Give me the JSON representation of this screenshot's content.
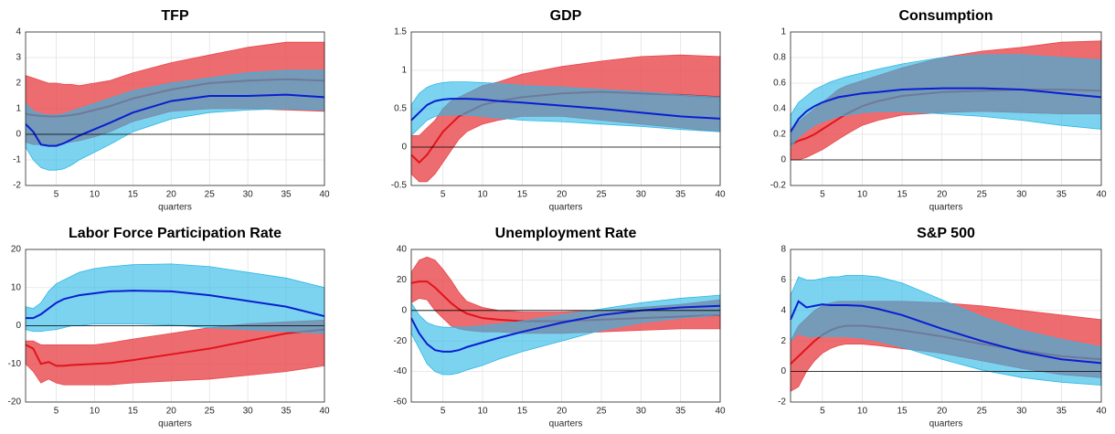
{
  "chart_data": [
    {
      "type": "line",
      "title": "TFP",
      "xlabel": "quarters",
      "x": [
        1,
        2,
        3,
        4,
        5,
        6,
        7,
        8,
        10,
        12,
        15,
        20,
        25,
        30,
        35,
        40
      ],
      "xlim": [
        1,
        40
      ],
      "xticks": [
        5,
        10,
        15,
        20,
        25,
        30,
        35,
        40
      ],
      "ylim": [
        -2,
        4
      ],
      "yticks": [
        -2,
        -1,
        0,
        1,
        2,
        3,
        4
      ],
      "grid": true,
      "hline": 0,
      "series": [
        {
          "color": "#e0141c",
          "band_color": "#e8474c",
          "values": [
            0.8,
            0.75,
            0.72,
            0.7,
            0.7,
            0.72,
            0.75,
            0.8,
            0.95,
            1.1,
            1.4,
            1.75,
            2.0,
            2.1,
            2.15,
            2.1
          ],
          "lower": [
            -0.3,
            -0.4,
            -0.4,
            -0.4,
            -0.4,
            -0.35,
            -0.3,
            -0.25,
            -0.1,
            0.1,
            0.5,
            0.9,
            1.0,
            1.0,
            0.95,
            0.9
          ],
          "upper": [
            2.3,
            2.2,
            2.1,
            2.0,
            2.0,
            1.95,
            1.95,
            1.9,
            2.0,
            2.1,
            2.4,
            2.8,
            3.1,
            3.4,
            3.6,
            3.6
          ]
        },
        {
          "color": "#0a1ed0",
          "band_color": "#2cb8e6",
          "values": [
            0.4,
            0.1,
            -0.4,
            -0.45,
            -0.45,
            -0.35,
            -0.2,
            -0.05,
            0.2,
            0.45,
            0.85,
            1.3,
            1.5,
            1.5,
            1.55,
            1.45
          ],
          "lower": [
            -0.5,
            -1.0,
            -1.3,
            -1.4,
            -1.4,
            -1.35,
            -1.2,
            -1.0,
            -0.7,
            -0.4,
            0.1,
            0.6,
            0.85,
            0.95,
            1.0,
            0.95
          ],
          "upper": [
            1.2,
            0.9,
            0.8,
            0.75,
            0.75,
            0.8,
            0.9,
            1.0,
            1.2,
            1.4,
            1.7,
            2.0,
            2.2,
            2.4,
            2.5,
            2.5
          ]
        }
      ]
    },
    {
      "type": "line",
      "title": "GDP",
      "xlabel": "quarters",
      "x": [
        1,
        2,
        3,
        4,
        5,
        6,
        7,
        8,
        10,
        12,
        15,
        20,
        25,
        30,
        35,
        40
      ],
      "xlim": [
        1,
        40
      ],
      "xticks": [
        5,
        10,
        15,
        20,
        25,
        30,
        35,
        40
      ],
      "ylim": [
        -0.5,
        1.5
      ],
      "yticks": [
        -0.5,
        0,
        0.5,
        1,
        1.5
      ],
      "grid": true,
      "hline": 0,
      "series": [
        {
          "color": "#e0141c",
          "band_color": "#e8474c",
          "values": [
            -0.1,
            -0.2,
            -0.1,
            0.05,
            0.2,
            0.3,
            0.4,
            0.45,
            0.55,
            0.6,
            0.65,
            0.7,
            0.72,
            0.7,
            0.68,
            0.65
          ],
          "lower": [
            -0.35,
            -0.45,
            -0.45,
            -0.35,
            -0.2,
            -0.05,
            0.1,
            0.2,
            0.3,
            0.35,
            0.4,
            0.4,
            0.35,
            0.3,
            0.25,
            0.2
          ],
          "upper": [
            0.15,
            0.15,
            0.25,
            0.35,
            0.5,
            0.6,
            0.65,
            0.7,
            0.8,
            0.85,
            0.95,
            1.05,
            1.12,
            1.18,
            1.2,
            1.18
          ]
        },
        {
          "color": "#0a1ed0",
          "band_color": "#2cb8e6",
          "values": [
            0.35,
            0.45,
            0.55,
            0.6,
            0.62,
            0.63,
            0.63,
            0.63,
            0.62,
            0.6,
            0.58,
            0.54,
            0.5,
            0.45,
            0.4,
            0.37
          ],
          "lower": [
            0.15,
            0.25,
            0.35,
            0.4,
            0.42,
            0.42,
            0.42,
            0.42,
            0.4,
            0.38,
            0.35,
            0.33,
            0.3,
            0.27,
            0.23,
            0.2
          ],
          "upper": [
            0.55,
            0.7,
            0.78,
            0.82,
            0.84,
            0.85,
            0.85,
            0.85,
            0.84,
            0.83,
            0.8,
            0.78,
            0.75,
            0.72,
            0.68,
            0.65
          ]
        }
      ]
    },
    {
      "type": "line",
      "title": "Consumption",
      "xlabel": "quarters",
      "x": [
        1,
        2,
        3,
        4,
        5,
        6,
        7,
        8,
        10,
        12,
        15,
        20,
        25,
        30,
        35,
        40
      ],
      "xlim": [
        1,
        40
      ],
      "xticks": [
        5,
        10,
        15,
        20,
        25,
        30,
        35,
        40
      ],
      "ylim": [
        -0.2,
        1
      ],
      "yticks": [
        -0.2,
        0,
        0.2,
        0.4,
        0.6,
        0.8,
        1
      ],
      "grid": true,
      "hline": 0,
      "series": [
        {
          "color": "#e0141c",
          "band_color": "#e8474c",
          "values": [
            0.12,
            0.15,
            0.17,
            0.2,
            0.24,
            0.28,
            0.32,
            0.36,
            0.42,
            0.46,
            0.5,
            0.53,
            0.54,
            0.55,
            0.55,
            0.54
          ],
          "lower": [
            0.0,
            0.0,
            0.02,
            0.05,
            0.08,
            0.12,
            0.16,
            0.2,
            0.27,
            0.31,
            0.35,
            0.37,
            0.38,
            0.37,
            0.36,
            0.36
          ],
          "upper": [
            0.2,
            0.3,
            0.35,
            0.4,
            0.45,
            0.5,
            0.55,
            0.58,
            0.62,
            0.66,
            0.72,
            0.8,
            0.85,
            0.88,
            0.92,
            0.93
          ]
        },
        {
          "color": "#0a1ed0",
          "band_color": "#2cb8e6",
          "values": [
            0.22,
            0.32,
            0.38,
            0.42,
            0.45,
            0.47,
            0.49,
            0.5,
            0.52,
            0.53,
            0.55,
            0.56,
            0.56,
            0.55,
            0.52,
            0.49
          ],
          "lower": [
            0.1,
            0.18,
            0.23,
            0.27,
            0.3,
            0.32,
            0.34,
            0.35,
            0.37,
            0.38,
            0.38,
            0.36,
            0.34,
            0.31,
            0.27,
            0.24
          ],
          "upper": [
            0.35,
            0.45,
            0.5,
            0.55,
            0.58,
            0.61,
            0.63,
            0.65,
            0.68,
            0.71,
            0.75,
            0.8,
            0.82,
            0.82,
            0.8,
            0.78
          ]
        }
      ]
    },
    {
      "type": "line",
      "title": "Labor Force Participation Rate",
      "xlabel": "quarters",
      "x": [
        1,
        2,
        3,
        4,
        5,
        6,
        7,
        8,
        10,
        12,
        15,
        20,
        25,
        30,
        35,
        40
      ],
      "xlim": [
        1,
        40
      ],
      "xticks": [
        5,
        10,
        15,
        20,
        25,
        30,
        35,
        40
      ],
      "ylim": [
        -20,
        20
      ],
      "yticks": [
        -20,
        -10,
        0,
        10,
        20
      ],
      "grid": true,
      "hline": 0,
      "series": [
        {
          "color": "#e0141c",
          "band_color": "#e8474c",
          "values": [
            -5,
            -6,
            -10,
            -9.5,
            -10.5,
            -10.5,
            -10.3,
            -10.2,
            -10,
            -9.8,
            -9,
            -7.5,
            -6,
            -4,
            -2,
            -1
          ],
          "lower": [
            -10,
            -12,
            -15,
            -14,
            -15,
            -15.5,
            -15.5,
            -15.5,
            -15.5,
            -15.5,
            -15,
            -14.5,
            -14,
            -13,
            -12,
            -10.5
          ],
          "upper": [
            -4,
            -4,
            -5,
            -5,
            -5,
            -5,
            -5,
            -5,
            -5,
            -4.5,
            -3.5,
            -2,
            -0.5,
            0.5,
            1,
            1.5
          ]
        },
        {
          "color": "#0a1ed0",
          "band_color": "#2cb8e6",
          "values": [
            2,
            2,
            3,
            4.5,
            6,
            7,
            7.5,
            8,
            8.5,
            9,
            9.2,
            9,
            8,
            6.5,
            5,
            2.5
          ],
          "lower": [
            -1,
            -1.5,
            -1.5,
            -1.2,
            -1,
            -0.5,
            0,
            0,
            0.5,
            0.5,
            0.5,
            0.2,
            -0.5,
            -1,
            -1.5,
            -2
          ],
          "upper": [
            5,
            4.5,
            6,
            9,
            11,
            12,
            13,
            14,
            15,
            15.5,
            16,
            16.2,
            15.5,
            14,
            12.5,
            10
          ]
        }
      ]
    },
    {
      "type": "line",
      "title": "Unemployment Rate",
      "xlabel": "quarters",
      "x": [
        1,
        2,
        3,
        4,
        5,
        6,
        7,
        8,
        10,
        12,
        15,
        20,
        25,
        30,
        35,
        40
      ],
      "xlim": [
        1,
        40
      ],
      "xticks": [
        5,
        10,
        15,
        20,
        25,
        30,
        35,
        40
      ],
      "ylim": [
        -60,
        40
      ],
      "yticks": [
        -60,
        -40,
        -20,
        0,
        20,
        40
      ],
      "grid": true,
      "hline": 0,
      "series": [
        {
          "color": "#e0141c",
          "band_color": "#e8474c",
          "values": [
            18,
            19,
            19,
            15,
            10,
            5,
            1,
            -2,
            -5,
            -6,
            -7,
            -7,
            -6,
            -5,
            -4,
            -3
          ],
          "lower": [
            5,
            8,
            7,
            0,
            -5,
            -10,
            -12,
            -13,
            -14,
            -14,
            -15,
            -15,
            -14,
            -13,
            -12,
            -12
          ],
          "upper": [
            25,
            33,
            35,
            33,
            27,
            20,
            12,
            6,
            2,
            0,
            -1,
            -1,
            0,
            2,
            4,
            7
          ]
        },
        {
          "color": "#0a1ed0",
          "band_color": "#2cb8e6",
          "values": [
            -5,
            -15,
            -22,
            -26,
            -27,
            -27,
            -26,
            -24,
            -21,
            -18,
            -14,
            -8,
            -3,
            0,
            2,
            3
          ],
          "lower": [
            -15,
            -25,
            -35,
            -40,
            -42,
            -42,
            -41,
            -39,
            -36,
            -32,
            -27,
            -20,
            -13,
            -8,
            -5,
            -3
          ],
          "upper": [
            5,
            -3,
            -8,
            -10,
            -11,
            -11,
            -11,
            -11,
            -10,
            -9,
            -7,
            -3,
            1,
            5,
            8,
            10
          ]
        }
      ]
    },
    {
      "type": "line",
      "title": "S&P 500",
      "xlabel": "quarters",
      "x": [
        1,
        2,
        3,
        4,
        5,
        6,
        7,
        8,
        10,
        12,
        15,
        20,
        25,
        30,
        35,
        40
      ],
      "xlim": [
        1,
        40
      ],
      "xticks": [
        5,
        10,
        15,
        20,
        25,
        30,
        35,
        40
      ],
      "ylim": [
        -2,
        8
      ],
      "yticks": [
        -2,
        0,
        2,
        4,
        6,
        8
      ],
      "grid": true,
      "hline": 0,
      "series": [
        {
          "color": "#e0141c",
          "band_color": "#e8474c",
          "values": [
            0.5,
            1.0,
            1.5,
            2.0,
            2.4,
            2.7,
            2.9,
            3.0,
            3.0,
            2.9,
            2.7,
            2.3,
            1.8,
            1.4,
            1.0,
            0.8
          ],
          "lower": [
            -1.3,
            -1,
            0,
            0.7,
            1.2,
            1.5,
            1.7,
            1.8,
            1.8,
            1.7,
            1.5,
            1.2,
            0.7,
            0.2,
            -0.2,
            -0.4
          ],
          "upper": [
            2,
            3,
            3.5,
            4,
            4.3,
            4.5,
            4.6,
            4.6,
            4.6,
            4.6,
            4.6,
            4.5,
            4.3,
            4.0,
            3.7,
            3.4
          ]
        },
        {
          "color": "#0a1ed0",
          "band_color": "#2cb8e6",
          "values": [
            3.4,
            4.6,
            4.2,
            4.3,
            4.4,
            4.35,
            4.35,
            4.35,
            4.3,
            4.1,
            3.7,
            2.8,
            2.0,
            1.3,
            0.8,
            0.55
          ],
          "lower": [
            2,
            2.5,
            2.3,
            2.3,
            2.3,
            2.3,
            2.3,
            2.3,
            2.2,
            2.0,
            1.6,
            0.8,
            0.1,
            -0.4,
            -0.7,
            -0.9
          ],
          "upper": [
            5,
            6.2,
            6,
            6,
            6.1,
            6.2,
            6.2,
            6.3,
            6.3,
            6.2,
            5.8,
            4.7,
            3.6,
            2.7,
            2.1,
            1.6
          ]
        }
      ]
    }
  ]
}
